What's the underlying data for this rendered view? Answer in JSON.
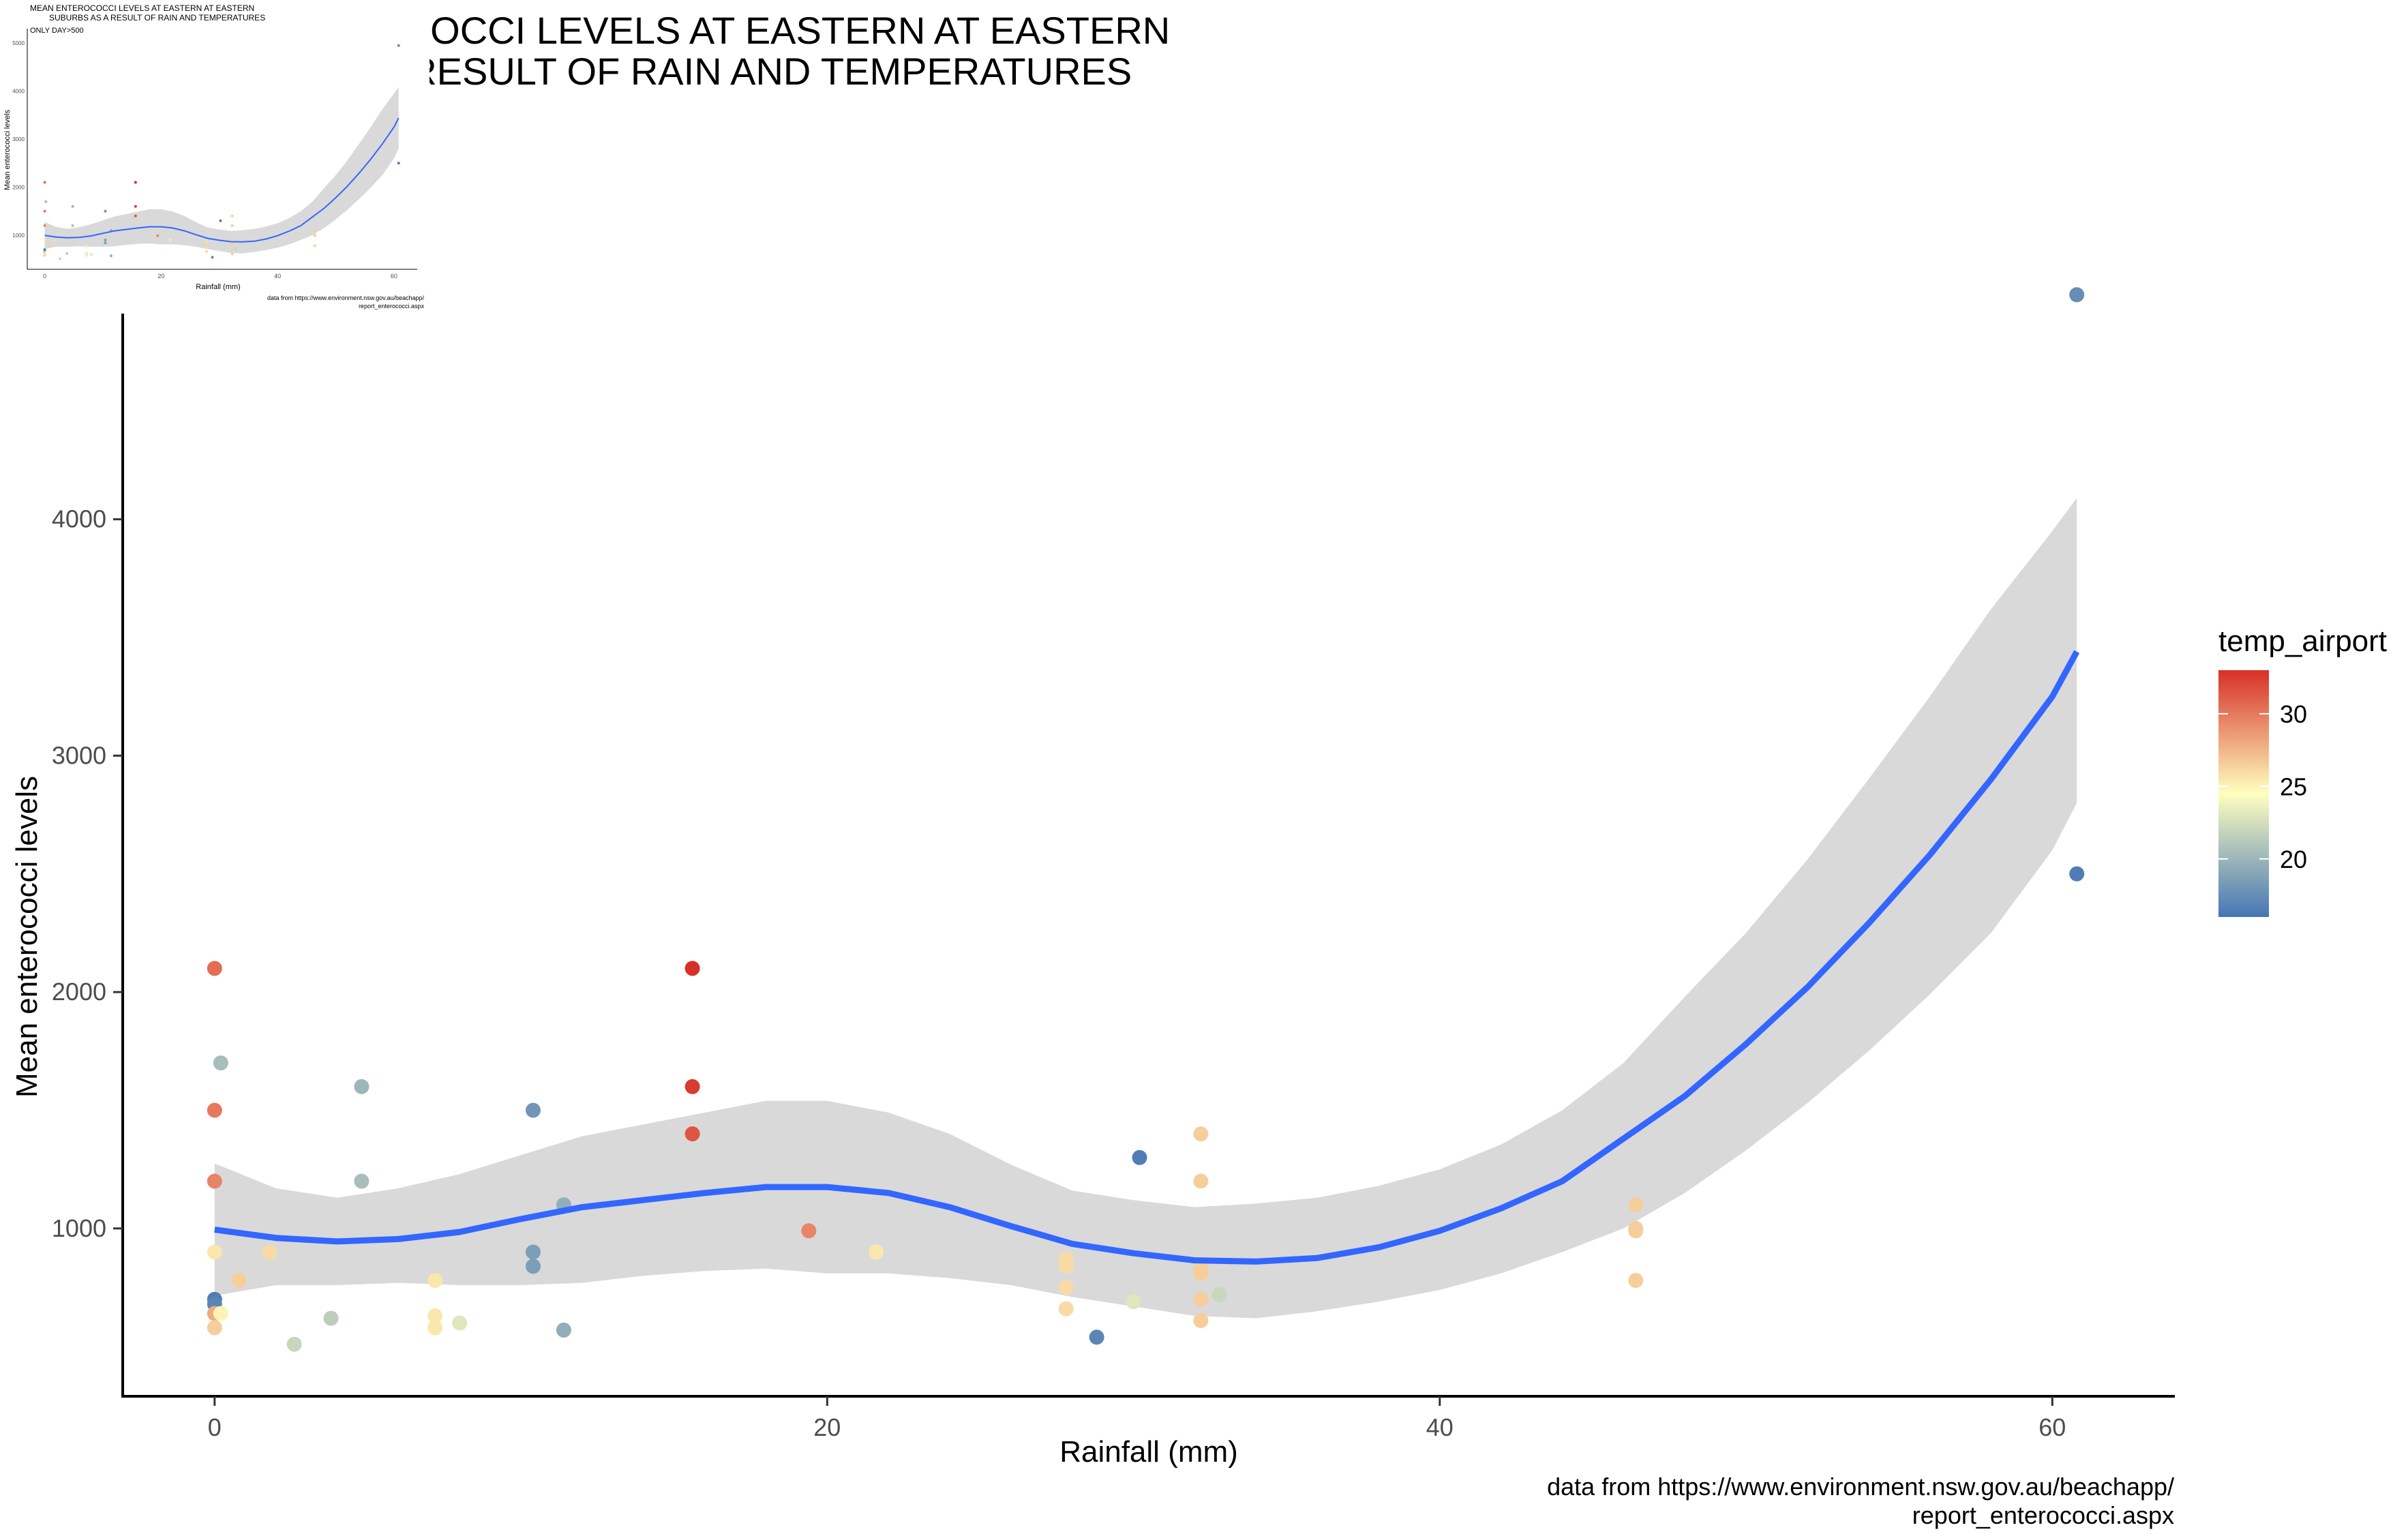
{
  "chart_data": {
    "type": "scatter",
    "title_lines": [
      "MEAN ENTEROCOCCI LEVELS AT EASTERN AT EASTERN",
      "SUBURBS AS A RESULT OF RAIN AND TEMPERATURES"
    ],
    "subtitle": "ONLY DAY>500",
    "xlabel": "Rainfall (mm)",
    "ylabel": "Mean enterococci levels",
    "xlim": [
      -3,
      64
    ],
    "ylim": [
      290,
      4870
    ],
    "x_ticks": [
      0,
      20,
      40,
      60
    ],
    "y_ticks": [
      1000,
      2000,
      3000,
      4000
    ],
    "thumb_y_ticks": [
      1000,
      2000,
      3000,
      4000,
      5000
    ],
    "grid": false,
    "legend": {
      "title": "temp_airport",
      "ticks": [
        20,
        25,
        30
      ],
      "range": [
        16,
        33
      ],
      "position": "right"
    },
    "caption_lines": [
      "data from https://www.environment.nsw.gov.au/beachapp/",
      "report_enterococci.aspx"
    ],
    "colors": {
      "low": "#4575b4",
      "mid": "#ffffbf",
      "high": "#d73027",
      "smooth": "#3366ff",
      "ribbon": "#d9d9d9"
    },
    "points": [
      {
        "x": 0.0,
        "y": 2100,
        "t": 30.5
      },
      {
        "x": 0.0,
        "y": 1500,
        "t": 30.0
      },
      {
        "x": 0.0,
        "y": 1200,
        "t": 29.5
      },
      {
        "x": 0.0,
        "y": 900,
        "t": 25.5
      },
      {
        "x": 0.0,
        "y": 700,
        "t": 16.5
      },
      {
        "x": 0.0,
        "y": 680,
        "t": 17.0
      },
      {
        "x": 0.0,
        "y": 640,
        "t": 28.0
      },
      {
        "x": 0.0,
        "y": 580,
        "t": 26.5
      },
      {
        "x": 0.2,
        "y": 1700,
        "t": 20.5
      },
      {
        "x": 0.2,
        "y": 640,
        "t": 25.0
      },
      {
        "x": 0.8,
        "y": 780,
        "t": 26.5
      },
      {
        "x": 1.8,
        "y": 900,
        "t": 26.0
      },
      {
        "x": 2.6,
        "y": 510,
        "t": 22.0
      },
      {
        "x": 3.8,
        "y": 620,
        "t": 21.5
      },
      {
        "x": 4.8,
        "y": 1600,
        "t": 20.0
      },
      {
        "x": 4.8,
        "y": 1200,
        "t": 20.5
      },
      {
        "x": 7.2,
        "y": 780,
        "t": 25.5
      },
      {
        "x": 7.2,
        "y": 630,
        "t": 25.5
      },
      {
        "x": 7.2,
        "y": 580,
        "t": 25.5
      },
      {
        "x": 8.0,
        "y": 600,
        "t": 23.0
      },
      {
        "x": 10.4,
        "y": 1500,
        "t": 18.0
      },
      {
        "x": 10.4,
        "y": 900,
        "t": 18.5
      },
      {
        "x": 10.4,
        "y": 840,
        "t": 18.5
      },
      {
        "x": 11.4,
        "y": 1100,
        "t": 19.5
      },
      {
        "x": 11.4,
        "y": 570,
        "t": 19.5
      },
      {
        "x": 15.6,
        "y": 2100,
        "t": 33.0
      },
      {
        "x": 15.6,
        "y": 1600,
        "t": 32.5
      },
      {
        "x": 15.6,
        "y": 1400,
        "t": 31.5
      },
      {
        "x": 19.4,
        "y": 990,
        "t": 29.5
      },
      {
        "x": 21.6,
        "y": 900,
        "t": 25.5
      },
      {
        "x": 27.8,
        "y": 870,
        "t": 26.0
      },
      {
        "x": 27.8,
        "y": 840,
        "t": 26.0
      },
      {
        "x": 27.8,
        "y": 750,
        "t": 26.0
      },
      {
        "x": 27.8,
        "y": 660,
        "t": 26.0
      },
      {
        "x": 28.8,
        "y": 540,
        "t": 17.0
      },
      {
        "x": 30.0,
        "y": 690,
        "t": 23.0
      },
      {
        "x": 30.2,
        "y": 1300,
        "t": 16.5
      },
      {
        "x": 32.2,
        "y": 1400,
        "t": 26.5
      },
      {
        "x": 32.2,
        "y": 1200,
        "t": 26.5
      },
      {
        "x": 32.2,
        "y": 830,
        "t": 26.5
      },
      {
        "x": 32.2,
        "y": 810,
        "t": 26.5
      },
      {
        "x": 32.2,
        "y": 700,
        "t": 26.5
      },
      {
        "x": 32.2,
        "y": 610,
        "t": 26.5
      },
      {
        "x": 32.8,
        "y": 720,
        "t": 22.0
      },
      {
        "x": 46.4,
        "y": 1100,
        "t": 26.5
      },
      {
        "x": 46.4,
        "y": 1000,
        "t": 26.5
      },
      {
        "x": 46.4,
        "y": 990,
        "t": 26.5
      },
      {
        "x": 46.4,
        "y": 780,
        "t": 26.5
      },
      {
        "x": 60.8,
        "y": 4950,
        "t": 17.5
      },
      {
        "x": 60.8,
        "y": 2500,
        "t": 16.5
      }
    ],
    "smooth": [
      {
        "x": 0,
        "y": 995,
        "lo": 715,
        "hi": 1275
      },
      {
        "x": 2,
        "y": 960,
        "lo": 760,
        "hi": 1170
      },
      {
        "x": 4,
        "y": 945,
        "lo": 760,
        "hi": 1130
      },
      {
        "x": 6,
        "y": 955,
        "lo": 770,
        "hi": 1170
      },
      {
        "x": 8,
        "y": 985,
        "lo": 760,
        "hi": 1230
      },
      {
        "x": 10,
        "y": 1040,
        "lo": 760,
        "hi": 1310
      },
      {
        "x": 12,
        "y": 1090,
        "lo": 770,
        "hi": 1390
      },
      {
        "x": 14,
        "y": 1120,
        "lo": 800,
        "hi": 1440
      },
      {
        "x": 16,
        "y": 1150,
        "lo": 820,
        "hi": 1490
      },
      {
        "x": 18,
        "y": 1175,
        "lo": 830,
        "hi": 1540
      },
      {
        "x": 20,
        "y": 1175,
        "lo": 810,
        "hi": 1540
      },
      {
        "x": 22,
        "y": 1150,
        "lo": 810,
        "hi": 1490
      },
      {
        "x": 24,
        "y": 1090,
        "lo": 790,
        "hi": 1400
      },
      {
        "x": 26,
        "y": 1010,
        "lo": 760,
        "hi": 1270
      },
      {
        "x": 28,
        "y": 935,
        "lo": 710,
        "hi": 1160
      },
      {
        "x": 30,
        "y": 895,
        "lo": 670,
        "hi": 1120
      },
      {
        "x": 32,
        "y": 865,
        "lo": 630,
        "hi": 1090
      },
      {
        "x": 34,
        "y": 860,
        "lo": 620,
        "hi": 1105
      },
      {
        "x": 36,
        "y": 875,
        "lo": 650,
        "hi": 1130
      },
      {
        "x": 38,
        "y": 920,
        "lo": 690,
        "hi": 1180
      },
      {
        "x": 40,
        "y": 990,
        "lo": 740,
        "hi": 1250
      },
      {
        "x": 42,
        "y": 1085,
        "lo": 810,
        "hi": 1355
      },
      {
        "x": 44,
        "y": 1200,
        "lo": 900,
        "hi": 1500
      },
      {
        "x": 46,
        "y": 1380,
        "lo": 1000,
        "hi": 1700
      },
      {
        "x": 48,
        "y": 1560,
        "lo": 1150,
        "hi": 1980
      },
      {
        "x": 50,
        "y": 1780,
        "lo": 1330,
        "hi": 2250
      },
      {
        "x": 52,
        "y": 2020,
        "lo": 1530,
        "hi": 2560
      },
      {
        "x": 54,
        "y": 2290,
        "lo": 1750,
        "hi": 2900
      },
      {
        "x": 56,
        "y": 2580,
        "lo": 1990,
        "hi": 3250
      },
      {
        "x": 58,
        "y": 2900,
        "lo": 2250,
        "hi": 3620
      },
      {
        "x": 60,
        "y": 3250,
        "lo": 2600,
        "hi": 3950
      },
      {
        "x": 60.8,
        "y": 3440,
        "lo": 2800,
        "hi": 4090
      }
    ]
  }
}
